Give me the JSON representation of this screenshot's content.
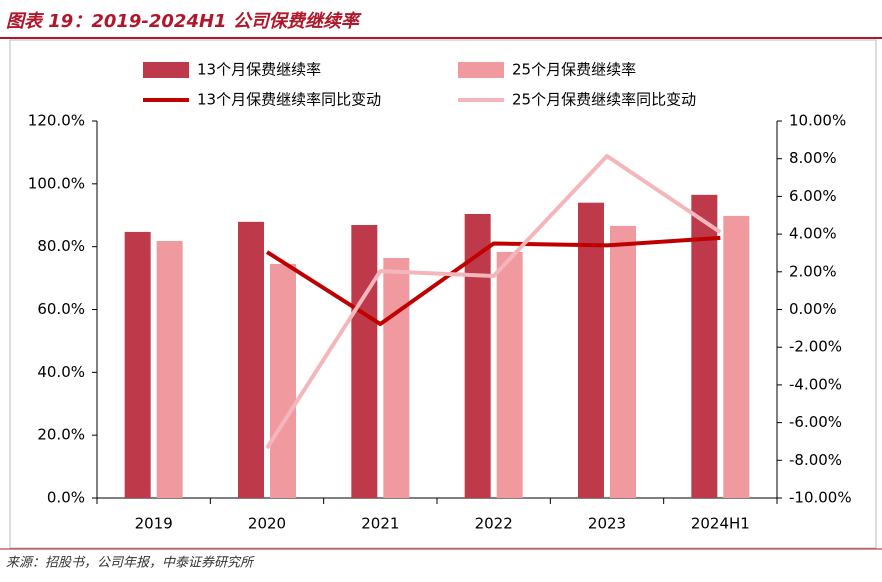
{
  "chart_data": {
    "type": "bar",
    "title": "图表 19：2019-2024H1 公司保费继续率",
    "categories": [
      "2019",
      "2020",
      "2021",
      "2022",
      "2023",
      "2024H1"
    ],
    "series": [
      {
        "name": "13个月保费继续率",
        "type": "bar",
        "color": "#be3a4a",
        "values": [
          84.7,
          87.9,
          86.9,
          90.4,
          94.0,
          96.5
        ]
      },
      {
        "name": "25个月保费继续率",
        "type": "bar",
        "color": "#f09aa0",
        "values": [
          81.8,
          74.5,
          76.4,
          78.3,
          86.6,
          89.8
        ]
      },
      {
        "name": "13个月保费继续率同比变动",
        "type": "line",
        "axis": "y2",
        "color": "#c00000",
        "values": [
          null,
          3.05,
          -0.77,
          3.5,
          3.4,
          3.8
        ]
      },
      {
        "name": "25个月保费继续率同比变动",
        "type": "line",
        "axis": "y2",
        "color": "#f4b6bb",
        "values": [
          null,
          -7.35,
          2.04,
          1.78,
          8.14,
          4.1
        ]
      }
    ],
    "ylim": [
      0,
      120
    ],
    "yticks": [
      {
        "value": 0,
        "label": "0.0%"
      },
      {
        "value": 20,
        "label": "20.0%"
      },
      {
        "value": 40,
        "label": "40.0%"
      },
      {
        "value": 60,
        "label": "60.0%"
      },
      {
        "value": 80,
        "label": "80.0%"
      },
      {
        "value": 100,
        "label": "100.0%"
      },
      {
        "value": 120,
        "label": "120.0%"
      }
    ],
    "y2lim": [
      -10,
      10
    ],
    "y2ticks": [
      {
        "value": -10,
        "label": "-10.00%"
      },
      {
        "value": -8,
        "label": "-8.00%"
      },
      {
        "value": -6,
        "label": "-6.00%"
      },
      {
        "value": -4,
        "label": "-4.00%"
      },
      {
        "value": -2,
        "label": "-2.00%"
      },
      {
        "value": 0,
        "label": "0.00%"
      },
      {
        "value": 2,
        "label": "2.00%"
      },
      {
        "value": 4,
        "label": "4.00%"
      },
      {
        "value": 6,
        "label": "6.00%"
      },
      {
        "value": 8,
        "label": "8.00%"
      },
      {
        "value": 10,
        "label": "10.00%"
      }
    ],
    "grid": false
  },
  "source": "来源：招股书，公司年报，中泰证券研究所"
}
